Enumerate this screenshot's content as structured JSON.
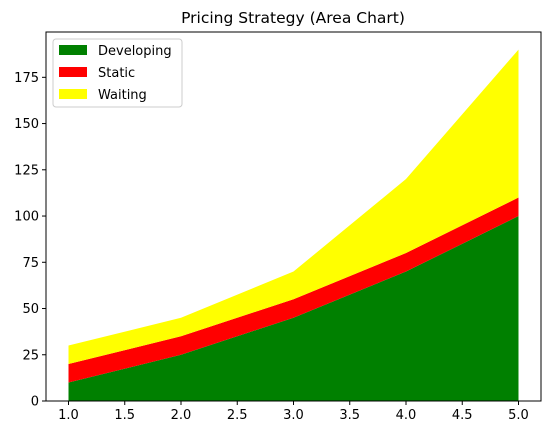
{
  "chart_data": {
    "type": "area",
    "stacked": true,
    "title": "Pricing Strategy (Area Chart)",
    "xlabel": "",
    "ylabel": "",
    "x": [
      1,
      2,
      3,
      4,
      5
    ],
    "xlim": [
      0.8,
      5.2
    ],
    "ylim": [
      0,
      199.5
    ],
    "xticks": [
      1.0,
      1.5,
      2.0,
      2.5,
      3.0,
      3.5,
      4.0,
      4.5,
      5.0
    ],
    "xtick_labels": [
      "1.0",
      "1.5",
      "2.0",
      "2.5",
      "3.0",
      "3.5",
      "4.0",
      "4.5",
      "5.0"
    ],
    "yticks": [
      0,
      25,
      50,
      75,
      100,
      125,
      150,
      175
    ],
    "ytick_labels": [
      "0",
      "25",
      "50",
      "75",
      "100",
      "125",
      "150",
      "175"
    ],
    "grid": false,
    "legend_position": "top-left",
    "series": [
      {
        "name": "Developing",
        "color": "#008000",
        "values": [
          10,
          25,
          45,
          70,
          100
        ]
      },
      {
        "name": "Static",
        "color": "#ff0000",
        "values": [
          10,
          10,
          10,
          10,
          10
        ]
      },
      {
        "name": "Waiting",
        "color": "#ffff00",
        "values": [
          10,
          10,
          15,
          40,
          80
        ]
      }
    ]
  }
}
